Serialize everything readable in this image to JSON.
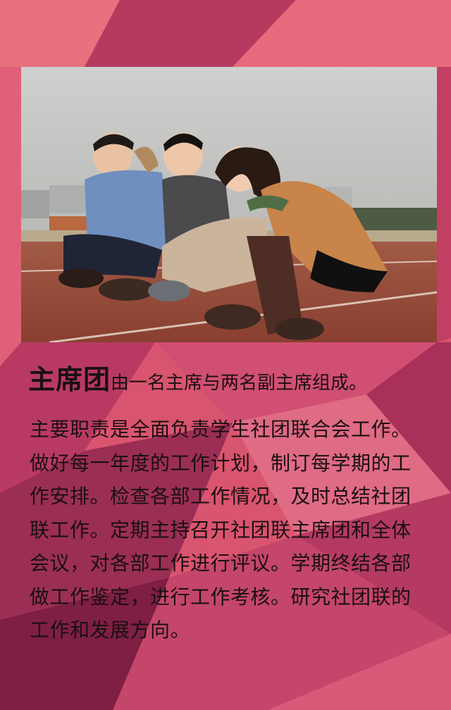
{
  "colors": {
    "base": "#d9546f",
    "dark": "#a32c52",
    "light": "#ec7b8a",
    "deep": "#6e1a3a"
  },
  "heading": {
    "title": "主席团",
    "rest": "由一名主席与两名副主席组成。"
  },
  "body": {
    "lines": [
      "主要职责是全面负责学生社团联合会工作。",
      "做好每一年度的工作计划，制订每学期的工",
      "作安排。检查各部工作情况，及时总结社团",
      "联工作。定期主持召开社团联主席团和全体",
      "会议，对各部工作进行评议。学期终结各部",
      "做工作鉴定，进行工作考核。研究社团联的",
      "工作和发展方向。"
    ]
  }
}
